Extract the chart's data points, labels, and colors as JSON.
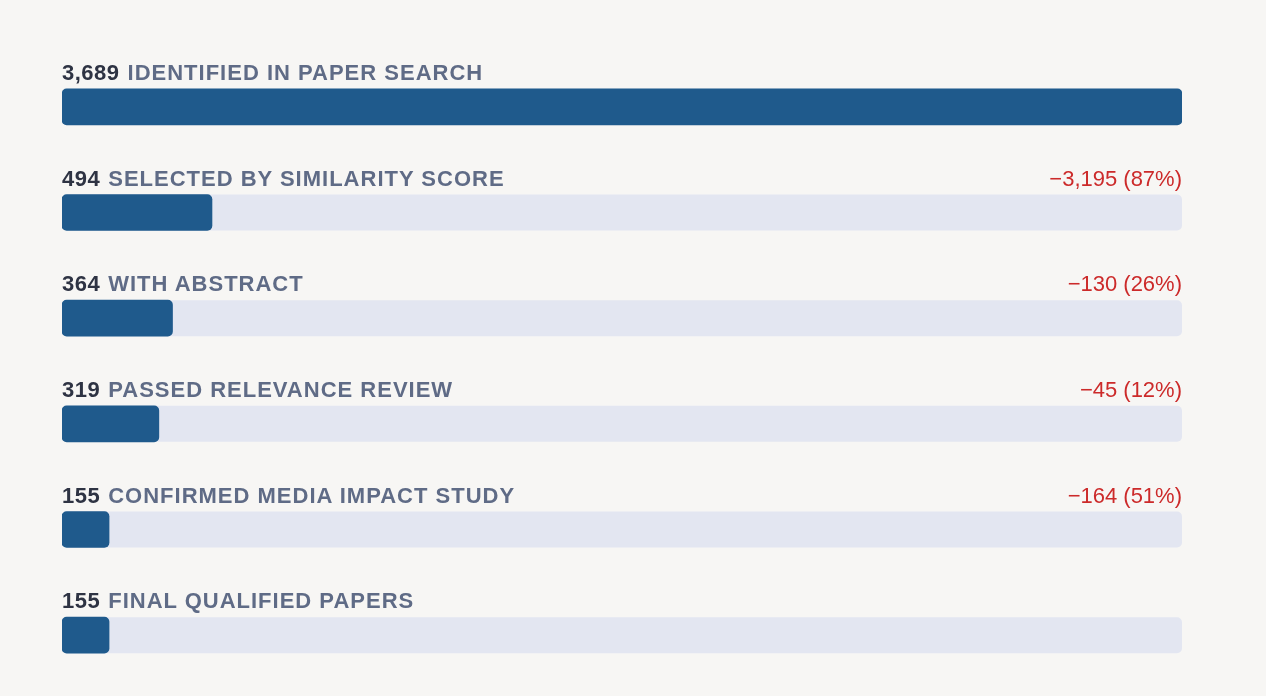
{
  "chart_data": {
    "type": "bar",
    "orientation": "horizontal",
    "categories": [
      "IDENTIFIED IN PAPER SEARCH",
      "SELECTED BY SIMILARITY SCORE",
      "WITH ABSTRACT",
      "PASSED RELEVANCE REVIEW",
      "CONFIRMED MEDIA IMPACT STUDY",
      "FINAL QUALIFIED PAPERS"
    ],
    "values": [
      3689,
      494,
      364,
      319,
      155,
      155
    ],
    "value_labels": [
      "3,689",
      "494",
      "364",
      "319",
      "155",
      "155"
    ],
    "color": "#1f5a8c",
    "annotations": [
      "−3,195 (87%)",
      "−130 (26%)",
      "−45 (12%)",
      "−164 (51%)"
    ]
  }
}
